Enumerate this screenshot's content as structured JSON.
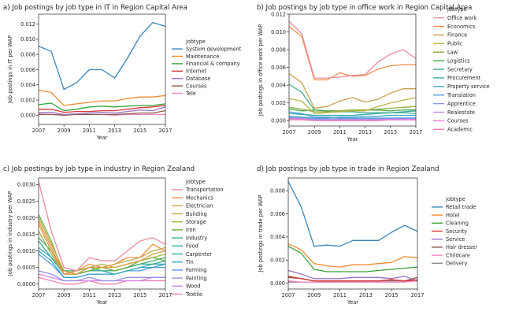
{
  "chart_data": [
    {
      "type": "line",
      "title": "a) Job postings by job type in IT in Region Capital Area",
      "xlabel": "Year",
      "ylabel": "Job postings in IT per WAP",
      "xlim": [
        2007,
        2017
      ],
      "ylim": [
        -0.0012,
        0.0133
      ],
      "xticks": [
        2007,
        2009,
        2011,
        2013,
        2015,
        2017
      ],
      "yticks": [
        0,
        0.002,
        0.004,
        0.006,
        0.008,
        0.01,
        0.012
      ],
      "ytick_labels": [
        "0.000",
        "0.002",
        "0.004",
        "0.006",
        "0.008",
        "0.010",
        "0.012"
      ],
      "legend_title": "jobtype",
      "legend_position": "right",
      "x": [
        2007,
        2008,
        2009,
        2010,
        2011,
        2012,
        2013,
        2014,
        2015,
        2016,
        2017
      ],
      "series": [
        {
          "name": "System development",
          "color": "#3a87b9",
          "values": [
            0.0091,
            0.0084,
            0.0034,
            0.0043,
            0.006,
            0.006,
            0.0049,
            0.0075,
            0.0104,
            0.0122,
            0.0117
          ]
        },
        {
          "name": "Maintenance",
          "color": "#f28b30",
          "values": [
            0.0033,
            0.003,
            0.0013,
            0.0015,
            0.0017,
            0.0019,
            0.0019,
            0.0022,
            0.0024,
            0.0024,
            0.0026
          ]
        },
        {
          "name": "Financial & company",
          "color": "#3aa13c",
          "values": [
            0.0014,
            0.0016,
            0.0006,
            0.0008,
            0.0011,
            0.0012,
            0.0011,
            0.0012,
            0.0013,
            0.0013,
            0.0015
          ]
        },
        {
          "name": "Internet",
          "color": "#d63b3b",
          "values": [
            0.0008,
            0.0008,
            0.0004,
            0.0005,
            0.0005,
            0.0006,
            0.0006,
            0.0008,
            0.001,
            0.0011,
            0.0013
          ]
        },
        {
          "name": "Database",
          "color": "#9a74c4",
          "values": [
            0.0004,
            0.0004,
            0.0001,
            0.0002,
            0.0003,
            0.0004,
            0.0003,
            0.0005,
            0.0007,
            0.0006,
            0.0011
          ]
        },
        {
          "name": "Courses",
          "color": "#8d5b4b",
          "values": [
            0.0001,
            0.0001,
            0.0,
            0.0001,
            0.0001,
            0.0001,
            0.0001,
            0.0002,
            0.0003,
            0.0003,
            0.0006
          ]
        },
        {
          "name": "Tele",
          "color": "#ee86c4",
          "values": [
            0.0002,
            0.0001,
            0.0001,
            0.0001,
            0.0001,
            0.0001,
            0.0,
            0.0001,
            0.0001,
            0.0001,
            0.0001
          ]
        }
      ]
    },
    {
      "type": "line",
      "title": "b) Job postings by job type in office work in Region Capital Area",
      "xlabel": "Year",
      "ylabel": "Job postings in office work per WAP",
      "xlim": [
        2007,
        2017
      ],
      "ylim": [
        -0.0006,
        0.012
      ],
      "xticks": [
        2007,
        2009,
        2011,
        2013,
        2015,
        2017
      ],
      "yticks": [
        0,
        0.002,
        0.004,
        0.006,
        0.008,
        0.01,
        0.012
      ],
      "ytick_labels": [
        "0.000",
        "0.002",
        "0.004",
        "0.006",
        "0.008",
        "0.010",
        "0.012"
      ],
      "legend_title": "jobtype",
      "legend_position": "right",
      "x": [
        2007,
        2008,
        2009,
        2010,
        2011,
        2012,
        2013,
        2014,
        2015,
        2016,
        2017
      ],
      "series": [
        {
          "name": "Office work",
          "color": "#ee8b9c",
          "values": [
            0.0112,
            0.0098,
            0.0048,
            0.0048,
            0.0049,
            0.0051,
            0.0052,
            0.0066,
            0.0075,
            0.008,
            0.007
          ]
        },
        {
          "name": "Economics",
          "color": "#f0914a",
          "values": [
            0.0106,
            0.0095,
            0.0046,
            0.0046,
            0.0054,
            0.005,
            0.0051,
            0.0058,
            0.0062,
            0.0063,
            0.0063
          ]
        },
        {
          "name": "Finance",
          "color": "#c9a24e",
          "values": [
            0.0053,
            0.0043,
            0.0014,
            0.0016,
            0.0022,
            0.0026,
            0.0021,
            0.0024,
            0.0031,
            0.0036,
            0.0036
          ]
        },
        {
          "name": "Public",
          "color": "#bcb548",
          "values": [
            0.0025,
            0.0022,
            0.0008,
            0.0009,
            0.001,
            0.0011,
            0.0011,
            0.0016,
            0.002,
            0.0023,
            0.0026
          ]
        },
        {
          "name": "Law",
          "color": "#8fae3d",
          "values": [
            0.0015,
            0.0013,
            0.001,
            0.001,
            0.0011,
            0.0012,
            0.0012,
            0.0013,
            0.0014,
            0.0015,
            0.0016
          ]
        },
        {
          "name": "Logistics",
          "color": "#45a84e",
          "values": [
            0.0013,
            0.0011,
            0.0012,
            0.0011,
            0.0011,
            0.0012,
            0.0012,
            0.0012,
            0.0011,
            0.0012,
            0.0012
          ]
        },
        {
          "name": "Secretary",
          "color": "#3fae90",
          "values": [
            0.0041,
            0.0032,
            0.0012,
            0.0011,
            0.001,
            0.001,
            0.0009,
            0.0009,
            0.0009,
            0.0009,
            0.0008
          ]
        },
        {
          "name": "Procurement",
          "color": "#36aaa8",
          "values": [
            0.0008,
            0.0007,
            0.0006,
            0.0006,
            0.0006,
            0.0006,
            0.0007,
            0.0008,
            0.0009,
            0.001,
            0.0011
          ]
        },
        {
          "name": "Property service",
          "color": "#3aa7c6",
          "values": [
            0.0005,
            0.0004,
            0.0003,
            0.0003,
            0.0004,
            0.0004,
            0.0005,
            0.0005,
            0.0006,
            0.0006,
            0.0006
          ]
        },
        {
          "name": "Translation",
          "color": "#4f9fe0",
          "values": [
            0.001,
            0.0008,
            0.0004,
            0.0004,
            0.0003,
            0.0003,
            0.0003,
            0.0003,
            0.0003,
            0.0003,
            0.0003
          ]
        },
        {
          "name": "Apprentice",
          "color": "#8c95ea",
          "values": [
            0.0003,
            0.0003,
            0.0002,
            0.0002,
            0.0002,
            0.0002,
            0.0002,
            0.0002,
            0.0003,
            0.0003,
            0.0003
          ]
        },
        {
          "name": "Realestate",
          "color": "#c28be8",
          "values": [
            0.0004,
            0.0003,
            0.0001,
            0.0001,
            0.0002,
            0.0002,
            0.0002,
            0.0002,
            0.0002,
            0.0002,
            0.0002
          ]
        },
        {
          "name": "Courses",
          "color": "#ea7fd5",
          "values": [
            0.0002,
            0.0002,
            0.0001,
            0.0001,
            0.0001,
            0.0001,
            0.0001,
            0.0001,
            0.0001,
            0.0001,
            0.0001
          ]
        },
        {
          "name": "Academic",
          "color": "#f07fb4",
          "values": [
            0.0001,
            0.0001,
            0.0,
            0.0,
            0.0,
            0.0,
            0.0,
            0.0,
            0.0001,
            0.0001,
            0.0001
          ]
        }
      ]
    },
    {
      "type": "line",
      "title": "c) Job postings by job type in industry in Region Zealand",
      "xlabel": "Year",
      "ylabel": "Job postings in industry per WAP",
      "xlim": [
        2007,
        2017
      ],
      "ylim": [
        -0.00015,
        0.0032
      ],
      "xticks": [
        2007,
        2009,
        2011,
        2013,
        2015,
        2017
      ],
      "yticks": [
        0,
        0.0005,
        0.001,
        0.0015,
        0.002,
        0.0025,
        0.003
      ],
      "ytick_labels": [
        "0.0000",
        "0.0005",
        "0.0010",
        "0.0015",
        "0.0020",
        "0.0025",
        "0.0030"
      ],
      "legend_title": "jobtype",
      "legend_position": "right",
      "x": [
        2007,
        2008,
        2009,
        2010,
        2011,
        2012,
        2013,
        2014,
        2015,
        2016,
        2017
      ],
      "series": [
        {
          "name": "Transportation",
          "color": "#ee8b9c",
          "values": [
            0.0031,
            0.0016,
            0.0005,
            0.0004,
            0.0008,
            0.0007,
            0.0007,
            0.001,
            0.0013,
            0.0014,
            0.0012
          ]
        },
        {
          "name": "Mechanics",
          "color": "#f0914a",
          "values": [
            0.0019,
            0.0011,
            0.0003,
            0.0004,
            0.0006,
            0.0005,
            0.0006,
            0.0008,
            0.0008,
            0.0012,
            0.001
          ]
        },
        {
          "name": "Electrician",
          "color": "#d9a04a",
          "values": [
            0.0018,
            0.001,
            0.0003,
            0.0003,
            0.0005,
            0.0005,
            0.0005,
            0.0006,
            0.0007,
            0.0009,
            0.001
          ]
        },
        {
          "name": "Building",
          "color": "#c4ac44",
          "values": [
            0.002,
            0.0012,
            0.0004,
            0.0003,
            0.0005,
            0.0005,
            0.0006,
            0.0007,
            0.0008,
            0.001,
            0.0011
          ]
        },
        {
          "name": "Storage",
          "color": "#a8b33f",
          "values": [
            0.0016,
            0.0009,
            0.0003,
            0.0004,
            0.0005,
            0.0006,
            0.0005,
            0.0006,
            0.0007,
            0.0008,
            0.0009
          ]
        },
        {
          "name": "Iron",
          "color": "#6fae3e",
          "values": [
            0.0021,
            0.0013,
            0.0003,
            0.0003,
            0.0004,
            0.0005,
            0.0004,
            0.0005,
            0.0007,
            0.0008,
            0.0007
          ]
        },
        {
          "name": "Industry",
          "color": "#3fae7a",
          "values": [
            0.0014,
            0.001,
            0.0004,
            0.0004,
            0.0005,
            0.0004,
            0.0004,
            0.0005,
            0.0006,
            0.0007,
            0.0008
          ]
        },
        {
          "name": "Food",
          "color": "#38ad9c",
          "values": [
            0.0013,
            0.0008,
            0.0003,
            0.0003,
            0.0004,
            0.0004,
            0.0004,
            0.0005,
            0.0006,
            0.0006,
            0.0007
          ]
        },
        {
          "name": "Carpenter",
          "color": "#36aab6",
          "values": [
            0.0011,
            0.0008,
            0.0004,
            0.0003,
            0.0004,
            0.0004,
            0.0003,
            0.0004,
            0.0005,
            0.0006,
            0.0006
          ]
        },
        {
          "name": "Tin",
          "color": "#3aa4d2",
          "values": [
            0.001,
            0.0007,
            0.0002,
            0.0002,
            0.0003,
            0.0003,
            0.0003,
            0.0004,
            0.0005,
            0.0005,
            0.0006
          ]
        },
        {
          "name": "Farming",
          "color": "#5a9be4",
          "values": [
            0.0009,
            0.0006,
            0.0002,
            0.0002,
            0.0003,
            0.0003,
            0.0003,
            0.0004,
            0.0004,
            0.0005,
            0.0005
          ]
        },
        {
          "name": "Painting",
          "color": "#9c8ee8",
          "values": [
            0.0004,
            0.0003,
            0.0001,
            0.0001,
            0.0002,
            0.0001,
            0.0001,
            0.0002,
            0.0002,
            0.0002,
            0.0002
          ]
        },
        {
          "name": "Wood",
          "color": "#d386e3",
          "values": [
            0.0003,
            0.0002,
            0.0001,
            0.0001,
            0.0001,
            0.0001,
            0.0001,
            0.0001,
            0.0001,
            0.0002,
            0.0002
          ]
        },
        {
          "name": "Textile",
          "color": "#ee7fb4",
          "values": [
            0.0002,
            0.0001,
            0.0,
            0.0,
            0.0001,
            0.0,
            0.0,
            0.0001,
            0.0001,
            0.0001,
            0.0001
          ]
        }
      ]
    },
    {
      "type": "line",
      "title": "d) Job postings by job type in trade in Region Zealand",
      "xlabel": "Year",
      "ylabel": "Job postings in trade per WAP",
      "xlim": [
        2007,
        2017
      ],
      "ylim": [
        -0.0005,
        0.0091
      ],
      "xticks": [
        2007,
        2009,
        2011,
        2013,
        2015,
        2017
      ],
      "yticks": [
        0,
        0.002,
        0.004,
        0.006,
        0.008
      ],
      "ytick_labels": [
        "0.000",
        "0.002",
        "0.004",
        "0.006",
        "0.008"
      ],
      "legend_title": "jobtype",
      "legend_position": "right",
      "x": [
        2007,
        2008,
        2009,
        2010,
        2011,
        2012,
        2013,
        2014,
        2015,
        2016,
        2017
      ],
      "series": [
        {
          "name": "Retail trade",
          "color": "#3a87b9",
          "values": [
            0.0088,
            0.0066,
            0.0032,
            0.0033,
            0.0032,
            0.0037,
            0.0037,
            0.0037,
            0.0044,
            0.005,
            0.0045
          ]
        },
        {
          "name": "Hotel",
          "color": "#f28b30",
          "values": [
            0.0034,
            0.0029,
            0.0017,
            0.0015,
            0.0014,
            0.0016,
            0.0016,
            0.0017,
            0.0018,
            0.0023,
            0.0022
          ]
        },
        {
          "name": "Cleaning",
          "color": "#3aa13c",
          "values": [
            0.0032,
            0.0026,
            0.0012,
            0.001,
            0.001,
            0.001,
            0.001,
            0.0011,
            0.0012,
            0.0013,
            0.0014
          ]
        },
        {
          "name": "Security",
          "color": "#d63b3b",
          "values": [
            0.0006,
            0.0004,
            0.0002,
            0.0002,
            0.0002,
            0.0002,
            0.0002,
            0.0002,
            0.0003,
            0.0002,
            0.0003
          ]
        },
        {
          "name": "Service",
          "color": "#9a74c4",
          "values": [
            0.0011,
            0.0008,
            0.0004,
            0.0004,
            0.0004,
            0.0005,
            0.0005,
            0.0005,
            0.0004,
            0.0006,
            0.0002
          ]
        },
        {
          "name": "Hair dresser",
          "color": "#8d5b4b",
          "values": [
            0.0005,
            0.0004,
            0.0002,
            0.0002,
            0.0002,
            0.0002,
            0.0002,
            0.0002,
            0.0003,
            0.0002,
            0.0005
          ]
        },
        {
          "name": "Childcare",
          "color": "#ee86c4",
          "values": [
            0.0002,
            0.0001,
            0.0001,
            0.0001,
            0.0001,
            0.0001,
            0.0001,
            0.0001,
            0.0001,
            0.0001,
            0.0002
          ]
        },
        {
          "name": "Delivery",
          "color": "#8a8a8a",
          "values": [
            0.0001,
            0.0001,
            0.0001,
            0.0001,
            0.0001,
            0.0001,
            0.0001,
            0.0002,
            0.0002,
            0.0002,
            0.0002
          ]
        }
      ]
    }
  ]
}
